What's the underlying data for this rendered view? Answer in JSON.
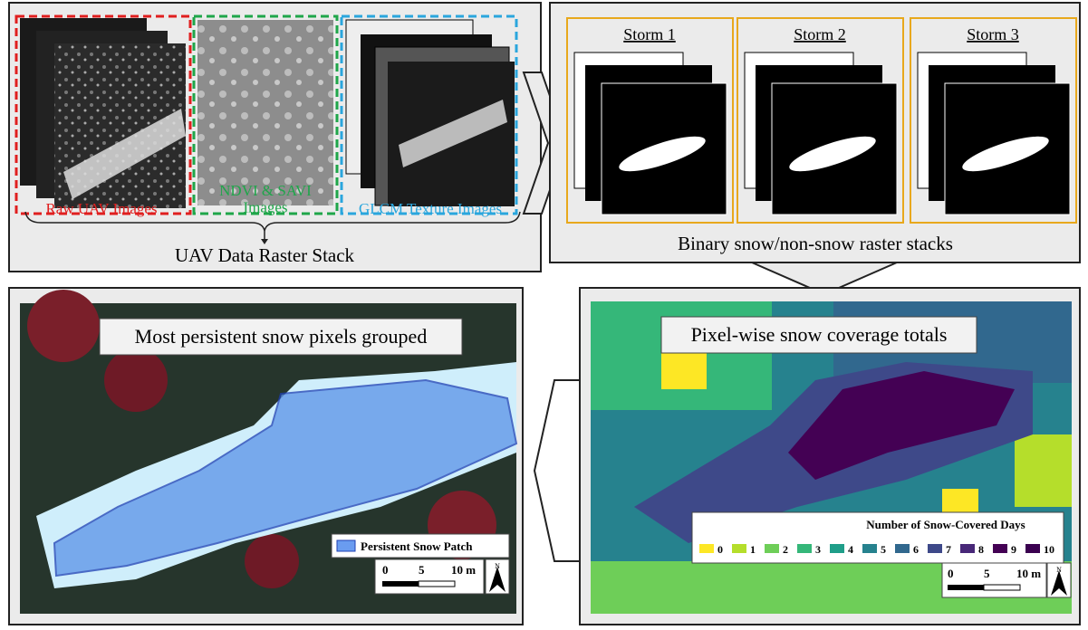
{
  "panel_stack": {
    "raw_label": "Raw UAV Images",
    "ndvi_label": "NDVI & SAVI\nImages",
    "glcm_label": "GLCM Texture Images",
    "title": "UAV Data Raster Stack"
  },
  "panel_binary": {
    "storms": [
      "Storm 1",
      "Storm 2",
      "Storm 3"
    ],
    "title": "Binary snow/non-snow raster stacks"
  },
  "panel_patch": {
    "title": "Most persistent snow pixels grouped",
    "legend": "Persistent Snow Patch",
    "scale": [
      "0",
      "5",
      "10 m"
    ],
    "north": "N"
  },
  "panel_totals": {
    "title": "Pixel-wise snow coverage totals",
    "legend_title": "Number of Snow-Covered Days",
    "classes": [
      {
        "label": "0",
        "color": "#fde725"
      },
      {
        "label": "1",
        "color": "#b5de2b"
      },
      {
        "label": "2",
        "color": "#6ece58"
      },
      {
        "label": "3",
        "color": "#35b779"
      },
      {
        "label": "4",
        "color": "#1f9e89"
      },
      {
        "label": "5",
        "color": "#26828e"
      },
      {
        "label": "6",
        "color": "#31688e"
      },
      {
        "label": "7",
        "color": "#3e4989"
      },
      {
        "label": "8",
        "color": "#482878"
      },
      {
        "label": "9",
        "color": "#440154"
      },
      {
        "label": "10",
        "color": "#3b0150"
      }
    ],
    "scale": [
      "0",
      "5",
      "10 m"
    ],
    "north": "N"
  }
}
